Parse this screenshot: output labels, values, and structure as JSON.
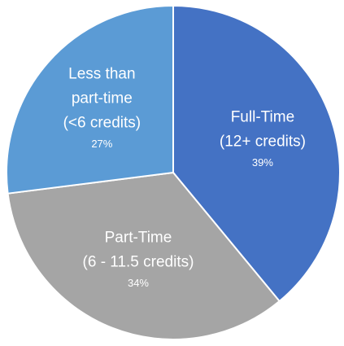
{
  "chart_data": {
    "type": "pie",
    "categories": [
      [
        "Full-Time",
        "(12+ credits)"
      ],
      [
        "Part-Time",
        "(6 - 11.5 credits)"
      ],
      [
        "Less than",
        "part-time",
        "(<6 credits)"
      ]
    ],
    "values": [
      39,
      34,
      27
    ],
    "value_labels": [
      "39%",
      "34%",
      "27%"
    ],
    "colors": [
      "#4472c4",
      "#a5a5a5",
      "#5b9bd5"
    ]
  }
}
